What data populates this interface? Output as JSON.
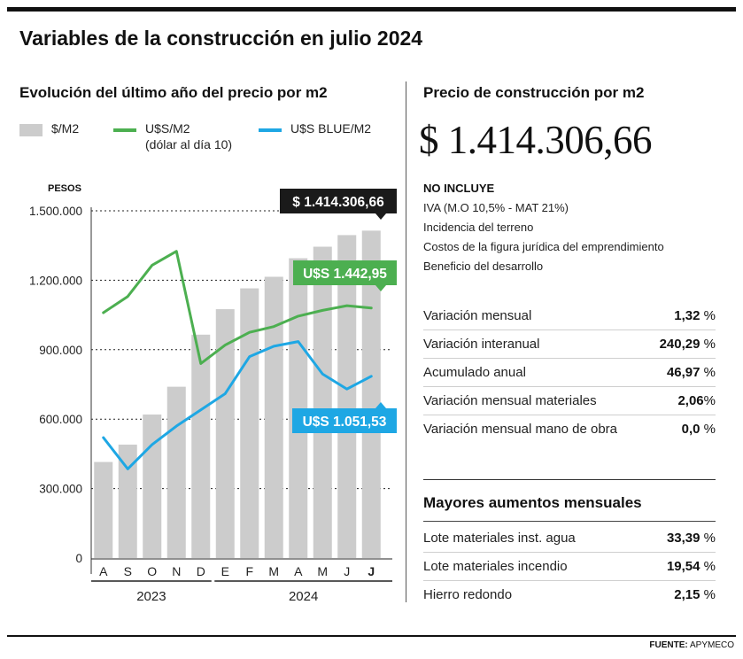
{
  "header": {
    "title": "Variables de la construcción en julio 2024"
  },
  "left": {
    "title": "Evolución del último año del precio por m2"
  },
  "legend": {
    "pesos_label": "$/M2",
    "usd_label": "U$S/M2",
    "usd_sub": "(dólar al día 10)",
    "blue_label": "U$S BLUE/M2"
  },
  "chart_data": {
    "type": "bar",
    "ylabel": "PESOS",
    "ylim": [
      0,
      1500000
    ],
    "yticks": [
      0,
      300000,
      600000,
      900000,
      1200000,
      1500000
    ],
    "ytick_labels": [
      "0",
      "300.000",
      "600.000",
      "900.000",
      "1.200.000",
      "1.500.000"
    ],
    "categories": [
      "A",
      "S",
      "O",
      "N",
      "D",
      "E",
      "F",
      "M",
      "A",
      "M",
      "J",
      "J"
    ],
    "year_labels": [
      "2023",
      "2024"
    ],
    "grid": true,
    "series": [
      {
        "name": "$/M2",
        "type": "bar",
        "color": "#cccccc",
        "values": [
          415000,
          490000,
          620000,
          740000,
          965000,
          1075000,
          1165000,
          1215000,
          1295000,
          1345000,
          1395000,
          1414306.66
        ]
      },
      {
        "name": "U$S/M2",
        "type": "line",
        "color": "#4caf50",
        "values": [
          1060000,
          1130000,
          1265000,
          1325000,
          840000,
          920000,
          975000,
          1000000,
          1045000,
          1070000,
          1090000,
          1080000
        ]
      },
      {
        "name": "U$S BLUE/M2",
        "type": "line",
        "color": "#1ea7e4",
        "values": [
          520000,
          385000,
          490000,
          570000,
          640000,
          710000,
          870000,
          915000,
          935000,
          795000,
          730000,
          785000
        ]
      }
    ],
    "annotations": [
      {
        "text": "$ 1.414.306,66",
        "color": "#1a1a1a"
      },
      {
        "text": "U$S 1.442,95",
        "color": "#4caf50"
      },
      {
        "text": "U$S 1.051,53",
        "color": "#1ea7e4"
      }
    ]
  },
  "right": {
    "title": "Precio de construcción por m2",
    "price": "$ 1.414.306,66",
    "excludes_title": "NO INCLUYE",
    "excludes": [
      "IVA (M.O 10,5% - MAT 21%)",
      "Incidencia del terreno",
      "Costos de la figura jurídica del emprendimiento",
      "Beneficio del desarrollo"
    ],
    "stats": [
      {
        "label": "Variación mensual",
        "value": "1,32",
        "unit": "%"
      },
      {
        "label": "Variación interanual",
        "value": "240,29",
        "unit": "%"
      },
      {
        "label": "Acumulado anual",
        "value": "46,97",
        "unit": "%"
      },
      {
        "label": "Variación mensual materiales",
        "value": "2,06",
        "unit": "%"
      },
      {
        "label": "Variación mensual mano de obra",
        "value": "0,0",
        "unit": "%"
      }
    ],
    "increases_title": "Mayores aumentos mensuales",
    "increases": [
      {
        "label": "Lote materiales inst. agua",
        "value": "33,39",
        "unit": "%"
      },
      {
        "label": "Lote materiales incendio",
        "value": "19,54",
        "unit": "%"
      },
      {
        "label": "Hierro redondo",
        "value": "2,15",
        "unit": "%"
      }
    ]
  },
  "footer": {
    "source_label": "FUENTE:",
    "source_value": "APYMECO"
  }
}
